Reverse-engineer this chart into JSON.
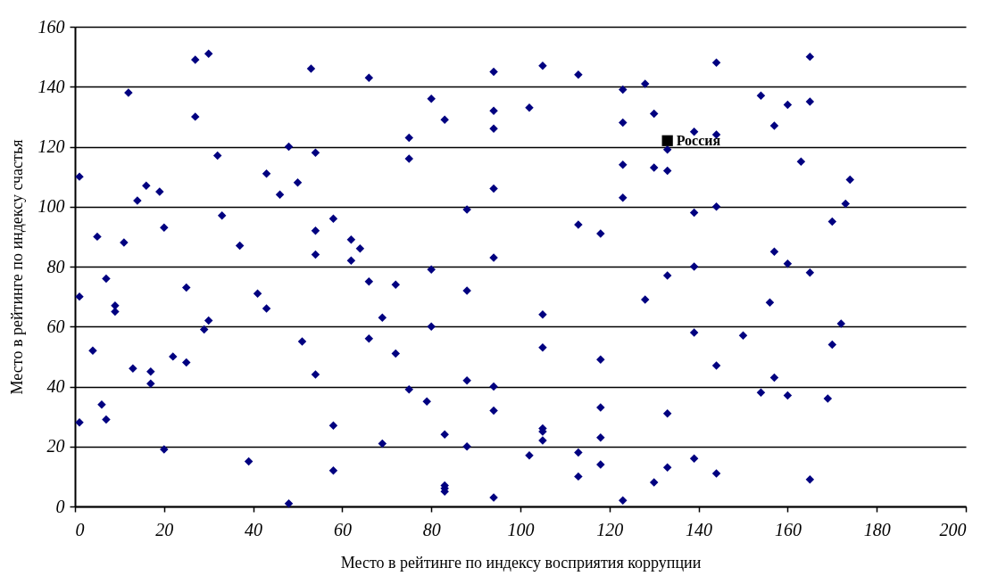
{
  "chart_data": {
    "type": "scatter",
    "xlabel": "Место в рейтинге  по индексу восприятия коррупции",
    "ylabel": "Место в рейтинге по индексу счастья",
    "xlim": [
      0,
      200
    ],
    "xticks": [
      0,
      20,
      40,
      60,
      80,
      100,
      120,
      140,
      160,
      180,
      200
    ],
    "ylim": [
      0,
      160
    ],
    "yticks": [
      0,
      20,
      40,
      60,
      80,
      100,
      120,
      140,
      160
    ],
    "grid": "y",
    "marker": "diamond",
    "series": [
      {
        "color": "#000080",
        "x": [
          1,
          1,
          1,
          4,
          5,
          6,
          7,
          7,
          9,
          9,
          11,
          12,
          13,
          14,
          16,
          17,
          17,
          19,
          20,
          20,
          22,
          25,
          25,
          27,
          27,
          29,
          30,
          30,
          32,
          33,
          37,
          39,
          41,
          43,
          43,
          46,
          48,
          48,
          50,
          51,
          53,
          54,
          54,
          54,
          54,
          58,
          58,
          58,
          62,
          62,
          64,
          66,
          66,
          66,
          69,
          69,
          72,
          72,
          75,
          75,
          75,
          79,
          80,
          80,
          80,
          83,
          83,
          83,
          83,
          83,
          88,
          88,
          88,
          88,
          94,
          94,
          94,
          94,
          94,
          94,
          94,
          94,
          102,
          102,
          105,
          105,
          105,
          105,
          105,
          105,
          113,
          113,
          113,
          113,
          118,
          118,
          118,
          118,
          118,
          123,
          123,
          123,
          123,
          123,
          128,
          128,
          130,
          130,
          130,
          133,
          133,
          133,
          133,
          133,
          139,
          139,
          139,
          139,
          139,
          144,
          144,
          144,
          144,
          144,
          150,
          154,
          154,
          156,
          157,
          157,
          157,
          160,
          160,
          160,
          163,
          165,
          165,
          165,
          165,
          169,
          170,
          170,
          172,
          173,
          174
        ],
        "values": [
          110,
          70,
          28,
          52,
          90,
          34,
          76,
          29,
          67,
          65,
          88,
          138,
          46,
          102,
          107,
          45,
          41,
          105,
          93,
          19,
          50,
          73,
          48,
          149,
          130,
          59,
          151,
          62,
          117,
          97,
          87,
          15,
          71,
          111,
          66,
          104,
          120,
          1,
          108,
          55,
          146,
          118,
          92,
          84,
          44,
          96,
          27,
          12,
          89,
          82,
          86,
          143,
          75,
          56,
          63,
          21,
          74,
          51,
          123,
          116,
          39,
          35,
          136,
          79,
          60,
          129,
          24,
          7,
          6,
          5,
          99,
          72,
          42,
          20,
          145,
          132,
          126,
          106,
          83,
          40,
          32,
          3,
          133,
          17,
          147,
          64,
          53,
          26,
          25,
          22,
          144,
          94,
          18,
          10,
          91,
          49,
          33,
          23,
          14,
          139,
          128,
          114,
          103,
          2,
          141,
          69,
          131,
          113,
          8,
          119,
          112,
          77,
          31,
          13,
          125,
          98,
          80,
          58,
          16,
          148,
          124,
          100,
          47,
          11,
          57,
          137,
          38,
          68,
          127,
          85,
          43,
          134,
          81,
          37,
          115,
          150,
          135,
          78,
          9,
          36,
          95,
          54,
          61,
          101,
          109
        ]
      },
      {
        "name": "Россия",
        "color": "#000000",
        "marker": "square",
        "x": [
          133
        ],
        "values": [
          122
        ]
      }
    ]
  }
}
